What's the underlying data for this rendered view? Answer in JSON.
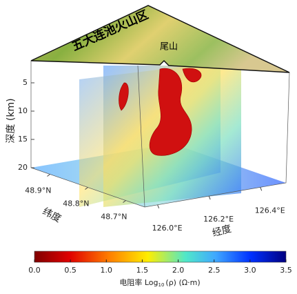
{
  "chart_data": {
    "type": "volume-slices",
    "title": "五大连池火山区",
    "annotation": "尾山",
    "zlabel": "深度 (km)",
    "ylabel": "纬度",
    "xlabel": "经度",
    "zlim": [
      0,
      20
    ],
    "zticks": [
      5,
      10,
      15,
      20
    ],
    "ylim": [
      48.65,
      48.95
    ],
    "yticks": [
      {
        "value": 48.9,
        "label": "48.9°N"
      },
      {
        "value": 48.8,
        "label": "48.8°N"
      },
      {
        "value": 48.7,
        "label": "48.7°N"
      }
    ],
    "xlim": [
      125.95,
      126.5
    ],
    "xticks": [
      {
        "value": 126.0,
        "label": "126.0°E"
      },
      {
        "value": 126.2,
        "label": "126.2°E"
      },
      {
        "value": 126.4,
        "label": "126.4°E"
      }
    ],
    "colorbar": {
      "lim": [
        0,
        3.5
      ],
      "ticks": [
        {
          "value": 0,
          "label": "0.0"
        },
        0.5,
        {
          "value": 1,
          "label": "1.0"
        },
        1.5,
        {
          "value": 2,
          "label": "2.0"
        },
        2.5,
        {
          "value": 3,
          "label": "3.0"
        },
        3.5
      ],
      "label_prefix": "电阻率 Log",
      "label_sub": "10",
      "label_suffix": "(ρ) (Ω·m)"
    }
  }
}
